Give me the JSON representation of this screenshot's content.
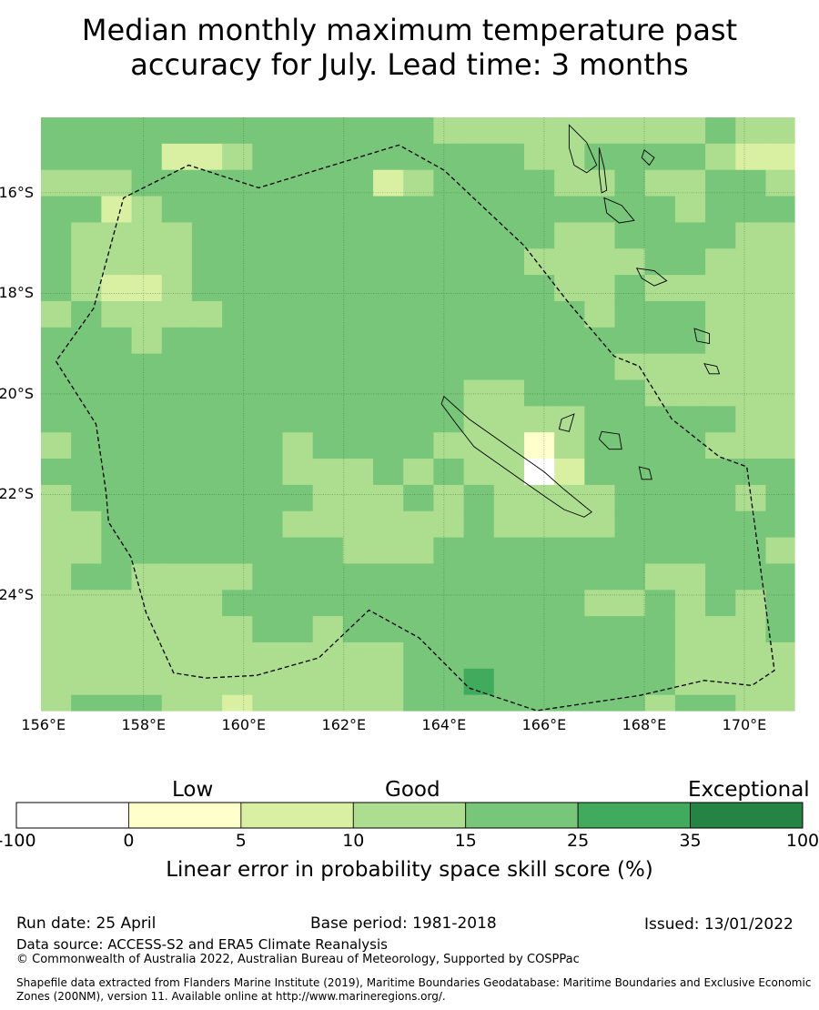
{
  "title_line1": "Median monthly maximum temperature past",
  "title_line2": "accuracy for July. Lead time: 3 months",
  "map": {
    "lon_range": [
      155.95,
      171.0
    ],
    "lat_range": [
      -26.3,
      -14.5
    ],
    "cell_deg": 0.833,
    "lat_labels": [
      "16°S",
      "18°S",
      "20°S",
      "22°S",
      "24°S"
    ],
    "lon_labels": [
      "156°E",
      "158°E",
      "160°E",
      "162°E",
      "164°E",
      "166°E",
      "168°E",
      "170°E"
    ],
    "skill_grid_classes": [
      "4444444444444333333333433",
      "4444223444444444334444322",
      "3334444444423444433433443",
      "4423444444444444444443444",
      "4333344444444444433444433",
      "4333344444444444333344333",
      "4322344444444444433433333",
      "3433334444444444443444333",
      "4443444444444444444444333",
      "4444444444444444444333333",
      "4444444444444433444433333",
      "4444444444444433334444433",
      "3444444434444333134444333",
      "4444444433343433024444444",
      "3444444443334343333444434",
      "3344444433333343333444444",
      "3344444444333444444444443",
      "3443333444444444444433444",
      "3333334444444444443343434",
      "3333333443444444444443334",
      "3333333333334444444443333",
      "3333333333334454444443333",
      "3444332333334444444434433"
    ],
    "eez_boundary": [
      [
        156.25,
        -19.35
      ],
      [
        157.05,
        -20.6
      ],
      [
        157.25,
        -21.95
      ],
      [
        157.3,
        -22.55
      ],
      [
        157.75,
        -23.25
      ],
      [
        158.05,
        -24.35
      ],
      [
        158.6,
        -25.55
      ],
      [
        159.25,
        -25.65
      ],
      [
        160.25,
        -25.6
      ],
      [
        161.5,
        -25.25
      ],
      [
        162.5,
        -24.3
      ],
      [
        163.5,
        -24.85
      ],
      [
        164.5,
        -25.85
      ],
      [
        165.85,
        -26.3
      ],
      [
        167.9,
        -26.0
      ],
      [
        169.2,
        -25.7
      ],
      [
        170.15,
        -25.8
      ],
      [
        170.6,
        -25.5
      ],
      [
        170.05,
        -21.45
      ],
      [
        169.5,
        -21.25
      ],
      [
        168.55,
        -20.5
      ],
      [
        167.9,
        -19.45
      ],
      [
        167.4,
        -19.25
      ],
      [
        166.5,
        -18.2
      ],
      [
        165.6,
        -17.05
      ],
      [
        164.0,
        -15.55
      ],
      [
        163.1,
        -15.05
      ],
      [
        160.3,
        -15.9
      ],
      [
        158.9,
        -15.45
      ],
      [
        157.6,
        -16.1
      ],
      [
        157.0,
        -18.3
      ],
      [
        156.25,
        -19.35
      ]
    ],
    "islands": [
      [
        [
          164.0,
          -20.05
        ],
        [
          164.5,
          -20.5
        ],
        [
          165.0,
          -20.85
        ],
        [
          165.5,
          -21.2
        ],
        [
          166.0,
          -21.55
        ],
        [
          166.4,
          -21.9
        ],
        [
          166.95,
          -22.35
        ],
        [
          166.8,
          -22.45
        ],
        [
          166.4,
          -22.3
        ],
        [
          166.1,
          -22.1
        ],
        [
          165.6,
          -21.75
        ],
        [
          165.1,
          -21.4
        ],
        [
          164.6,
          -21.05
        ],
        [
          164.25,
          -20.6
        ],
        [
          163.95,
          -20.2
        ]
      ],
      [
        [
          166.5,
          -14.65
        ],
        [
          166.85,
          -15.0
        ],
        [
          167.05,
          -15.45
        ],
        [
          166.85,
          -15.6
        ],
        [
          166.6,
          -15.45
        ],
        [
          166.5,
          -15.1
        ]
      ],
      [
        [
          167.1,
          -15.1
        ],
        [
          167.2,
          -15.5
        ],
        [
          167.25,
          -15.95
        ],
        [
          167.15,
          -16.0
        ],
        [
          167.1,
          -15.6
        ]
      ],
      [
        [
          167.2,
          -16.1
        ],
        [
          167.55,
          -16.25
        ],
        [
          167.8,
          -16.55
        ],
        [
          167.5,
          -16.6
        ],
        [
          167.25,
          -16.4
        ]
      ],
      [
        [
          167.85,
          -17.5
        ],
        [
          168.2,
          -17.55
        ],
        [
          168.45,
          -17.75
        ],
        [
          168.2,
          -17.85
        ],
        [
          167.95,
          -17.7
        ]
      ],
      [
        [
          167.15,
          -20.75
        ],
        [
          167.5,
          -20.8
        ],
        [
          167.55,
          -21.1
        ],
        [
          167.3,
          -21.1
        ],
        [
          167.1,
          -20.9
        ]
      ],
      [
        [
          167.9,
          -21.45
        ],
        [
          168.1,
          -21.5
        ],
        [
          168.15,
          -21.7
        ],
        [
          167.95,
          -21.7
        ]
      ],
      [
        [
          169.0,
          -18.7
        ],
        [
          169.3,
          -18.8
        ],
        [
          169.3,
          -19.0
        ],
        [
          169.05,
          -18.95
        ]
      ],
      [
        [
          169.2,
          -19.4
        ],
        [
          169.45,
          -19.45
        ],
        [
          169.5,
          -19.6
        ],
        [
          169.3,
          -19.6
        ]
      ],
      [
        [
          166.35,
          -20.5
        ],
        [
          166.6,
          -20.4
        ],
        [
          166.5,
          -20.75
        ],
        [
          166.3,
          -20.7
        ]
      ],
      [
        [
          168.0,
          -15.15
        ],
        [
          168.2,
          -15.3
        ],
        [
          168.1,
          -15.45
        ],
        [
          167.95,
          -15.3
        ]
      ]
    ]
  },
  "colorbar": {
    "categories": [
      "Low",
      "Good",
      "Exceptional"
    ],
    "ticks": [
      "-100",
      "0",
      "5",
      "10",
      "15",
      "25",
      "35",
      "100"
    ],
    "colors": [
      "#ffffff",
      "#ffffcc",
      "#d9f0a3",
      "#addd8e",
      "#78c679",
      "#41ab5d",
      "#238443"
    ],
    "label": "Linear error in probability space skill score (%)"
  },
  "footer": {
    "run_date": "Run date: 25 April",
    "base_period": "Base period: 1981-2018",
    "issued": "Issued: 13/01/2022",
    "data_source": "Data source: ACCESS-S2 and ERA5 Climate Reanalysis",
    "copyright": "© Commonwealth of Australia 2022, Australian Bureau of Meteorology, Supported by COSPPac",
    "shapefile_line1": "Shapefile data extracted from Flanders Marine Institute (2019), Maritime Boundaries Geodatabase: Maritime Boundaries and Exclusive Economic",
    "shapefile_line2": "Zones (200NM), version 11. Available online at http://www.marineregions.org/."
  }
}
